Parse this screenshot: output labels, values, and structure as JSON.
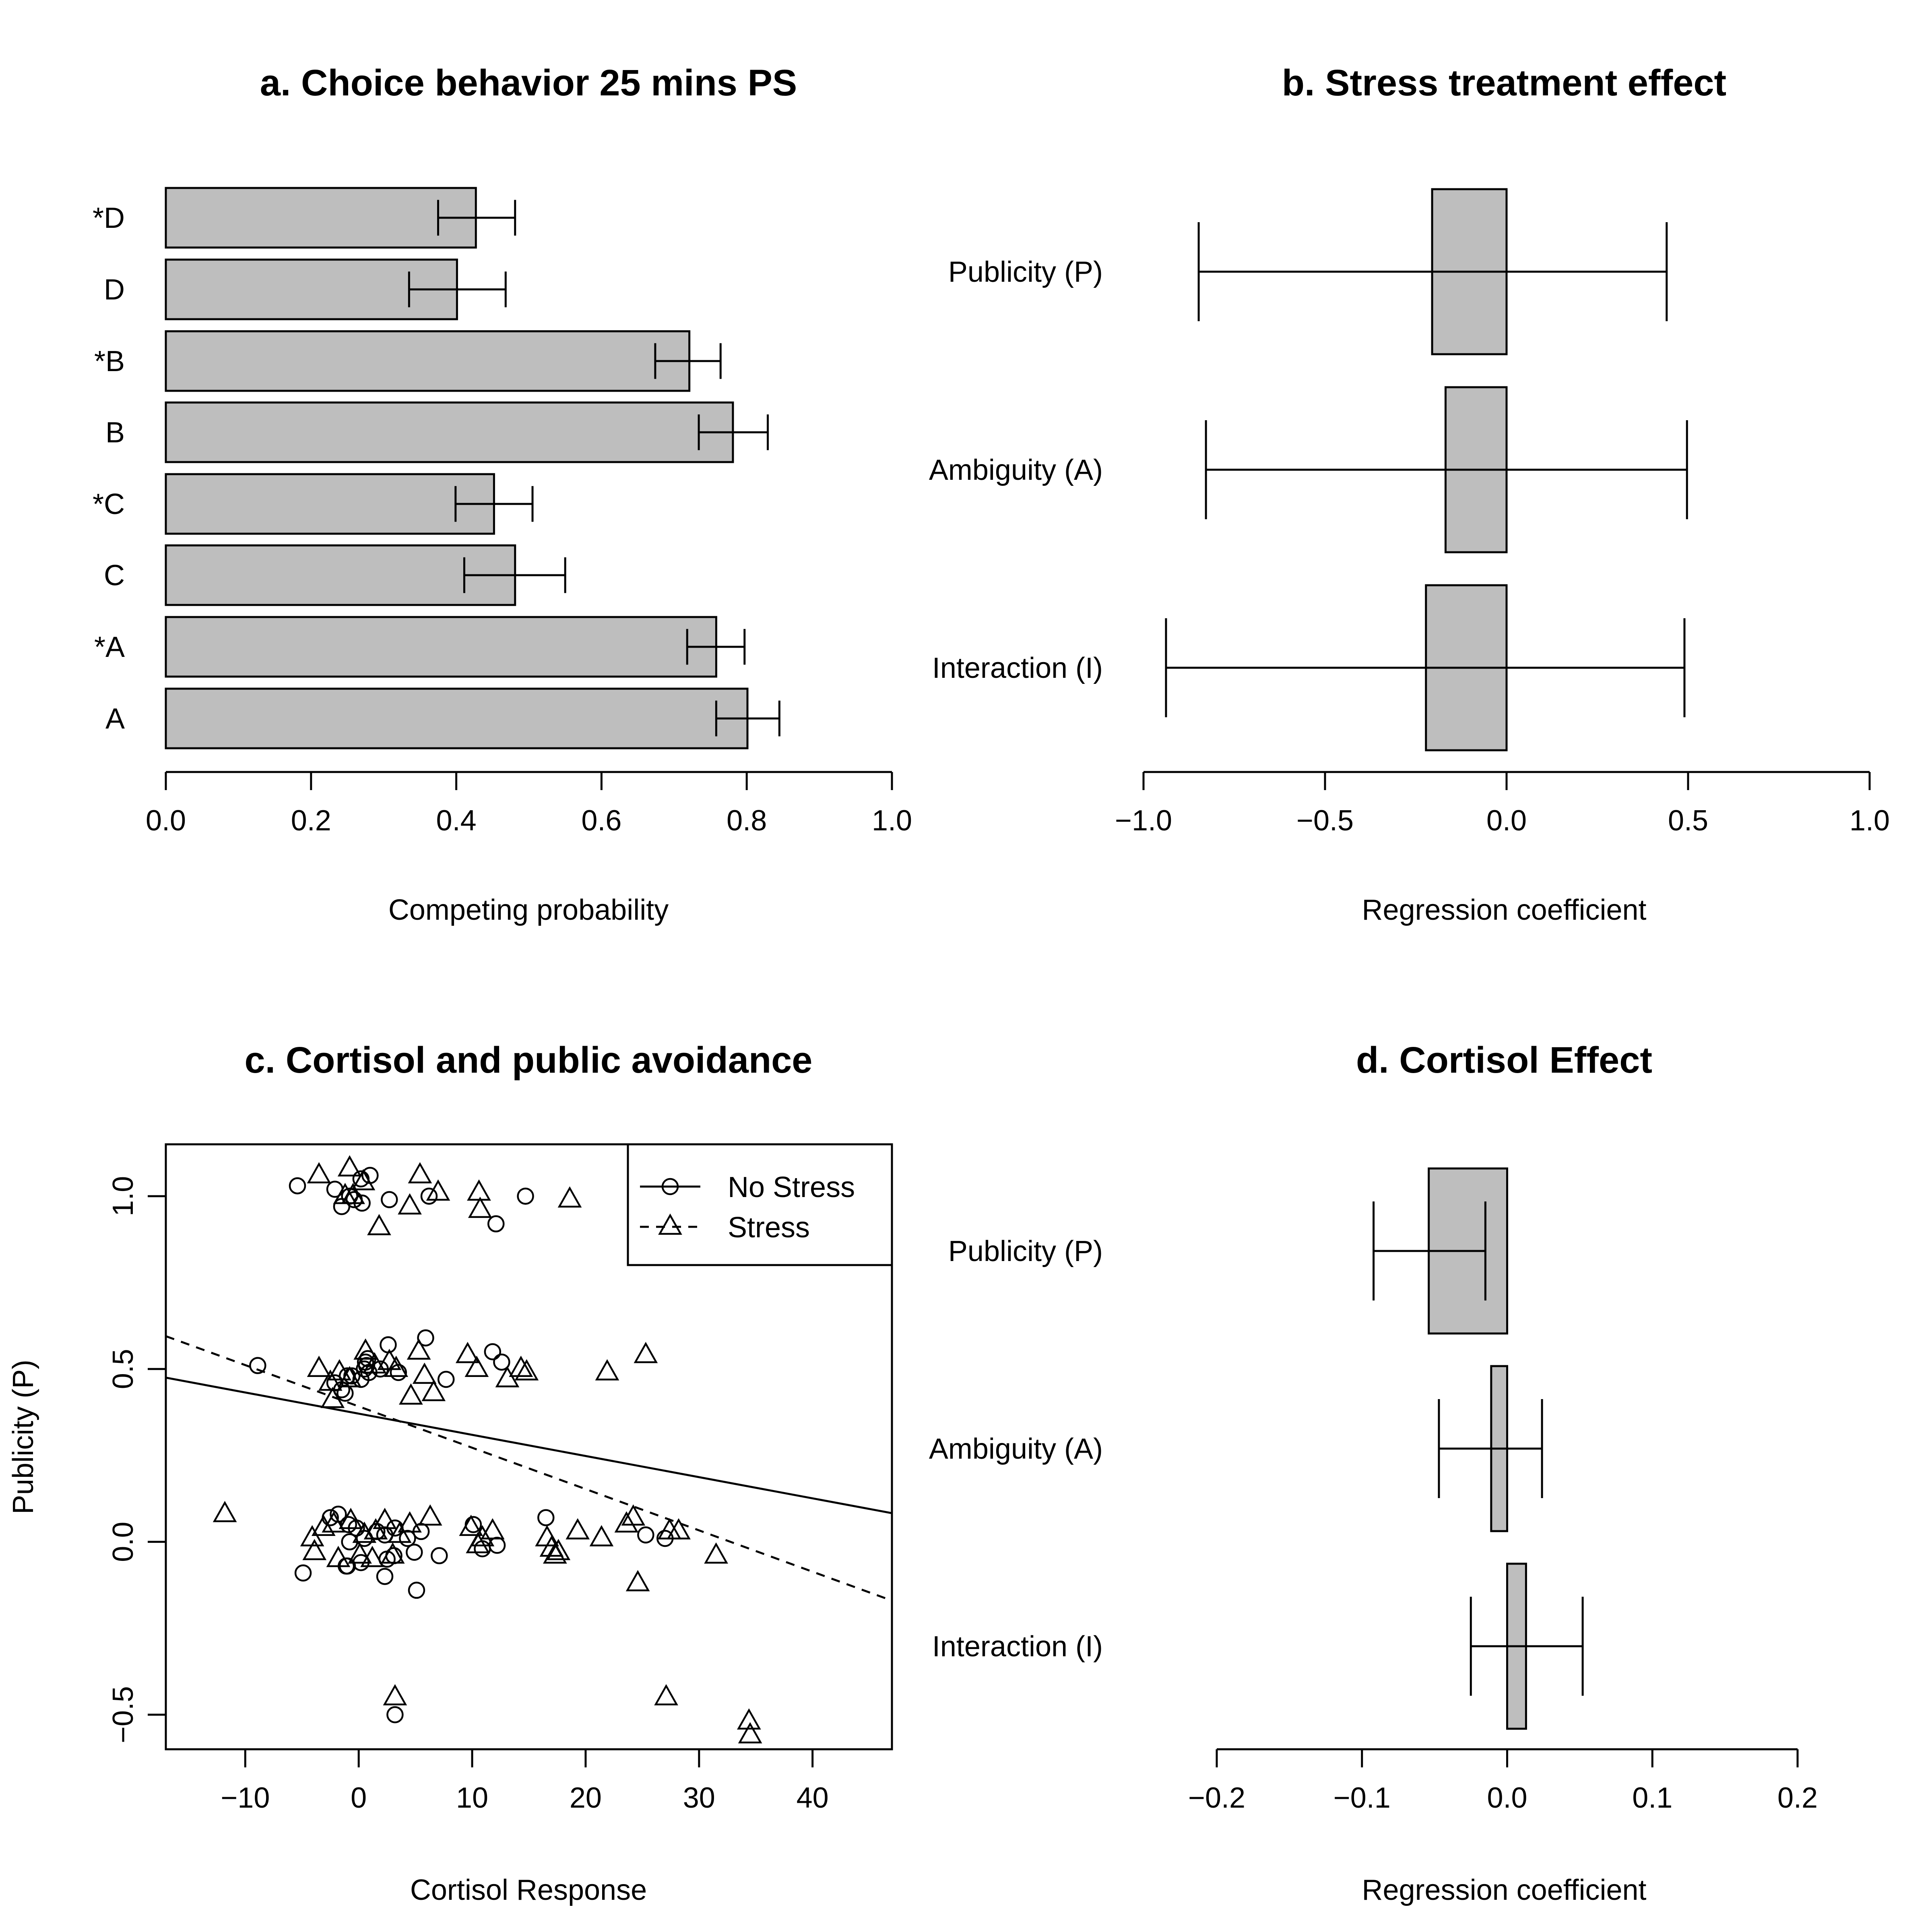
{
  "chart_data": [
    {
      "id": "a",
      "type": "bar",
      "orientation": "horizontal",
      "title": "a. Choice behavior 25 mins PS",
      "xlabel": "Competing probability",
      "xlim": [
        0,
        1
      ],
      "xticks": [
        "0.0",
        "0.2",
        "0.4",
        "0.6",
        "0.8",
        "1.0"
      ],
      "categories": [
        "*D",
        "D",
        "*B",
        "B",
        "*C",
        "C",
        "*A",
        "A"
      ],
      "values": [
        0.427,
        0.401,
        0.721,
        0.781,
        0.452,
        0.481,
        0.758,
        0.801
      ],
      "error_low": [
        0.375,
        0.335,
        0.674,
        0.734,
        0.399,
        0.411,
        0.718,
        0.758
      ],
      "error_high": [
        0.481,
        0.468,
        0.764,
        0.829,
        0.505,
        0.55,
        0.797,
        0.845
      ],
      "fill": "#bebebe"
    },
    {
      "id": "b",
      "type": "bar",
      "orientation": "horizontal",
      "title": "b. Stress treatment effect",
      "xlabel": "Regression coefficient",
      "xlim": [
        -1,
        1
      ],
      "xticks": [
        "−1.0",
        "−0.5",
        "0.0",
        "0.5",
        "1.0"
      ],
      "categories": [
        "Publicity (P)",
        "Ambiguity (A)",
        "Interaction (I)"
      ],
      "values": [
        -0.205,
        -0.168,
        -0.222
      ],
      "error_low": [
        -0.848,
        -0.828,
        -0.938
      ],
      "error_high": [
        0.441,
        0.497,
        0.49
      ],
      "fill": "#bebebe"
    },
    {
      "id": "c",
      "type": "scatter",
      "title": "c. Cortisol and public avoidance",
      "xlabel": "Cortisol Response",
      "ylabel": "Publicity (P)",
      "xlim": [
        -17,
        47
      ],
      "ylim": [
        -0.6,
        1.15
      ],
      "xticks": [
        "−10",
        "0",
        "10",
        "20",
        "30",
        "40"
      ],
      "yticks": [
        "−0.5",
        "0.0",
        "0.5",
        "1.0"
      ],
      "legend_position": "top-right",
      "series": [
        {
          "name": "No Stress",
          "marker": "circle",
          "line": "solid",
          "fit": [
            [
              -17,
              0.475
            ],
            [
              47,
              0.083
            ]
          ],
          "x": [
            -5.4,
            -2.1,
            -0.8,
            0.2,
            1.0,
            2.7,
            6.2,
            14.7,
            12.1,
            -1.5,
            -0.4,
            0.3,
            0.8,
            0.6,
            2.6,
            3.5,
            5.9,
            7.7,
            11.8,
            12.6,
            -0.6,
            0.7,
            1.9,
            0.5,
            -8.9,
            -1.0,
            -1.5,
            -2.1,
            -1.2,
            0.2,
            0.9,
            -2.5,
            -1.8,
            -0.9,
            -0.2,
            0.5,
            1.6,
            2.3,
            3.2,
            4.3,
            5.5,
            10.1,
            12.2,
            16.5,
            25.3,
            27.0,
            -0.8,
            -4.9,
            -1.0,
            0.2,
            2.5,
            3.1,
            4.9,
            7.1,
            10.9,
            -1.1,
            2.3,
            5.1,
            3.2
          ],
          "y": [
            1.03,
            1.02,
            1.0,
            1.05,
            1.06,
            0.99,
            1.0,
            1.0,
            0.92,
            0.97,
            0.99,
            0.98,
            0.53,
            0.52,
            0.57,
            0.49,
            0.59,
            0.47,
            0.55,
            0.52,
            0.48,
            0.51,
            0.5,
            0.5,
            0.51,
            0.48,
            0.44,
            0.46,
            0.43,
            0.47,
            0.49,
            0.07,
            0.08,
            0.05,
            0.04,
            0.01,
            0.03,
            0.02,
            0.04,
            0.01,
            0.03,
            0.05,
            -0.01,
            0.07,
            0.02,
            0.01,
            0.0,
            -0.09,
            -0.07,
            -0.06,
            -0.05,
            -0.04,
            -0.03,
            -0.04,
            -0.02,
            -0.07,
            -0.1,
            -0.14,
            -0.5
          ]
        },
        {
          "name": "Stress",
          "marker": "triangle",
          "line": "dashed",
          "fit": [
            [
              -17,
              0.595
            ],
            [
              47,
              -0.17
            ]
          ],
          "x": [
            -3.5,
            -0.8,
            -1.2,
            -0.5,
            0.4,
            1.8,
            4.5,
            5.4,
            7.0,
            10.6,
            10.7,
            18.6,
            -3.5,
            -2.5,
            -1.7,
            -0.8,
            0.6,
            1.4,
            2.7,
            3.3,
            5.3,
            5.8,
            9.6,
            10.4,
            13.1,
            14.3,
            14.8,
            21.9,
            25.3,
            -2.3,
            4.6,
            6.6,
            -11.8,
            -4.1,
            -3.1,
            -2.2,
            -0.7,
            0.5,
            1.5,
            2.3,
            3.6,
            4.5,
            6.3,
            9.9,
            10.9,
            11.8,
            16.6,
            19.3,
            21.4,
            23.6,
            24.2,
            27.4,
            28.2,
            -3.9,
            -1.8,
            0.1,
            1.2,
            3.0,
            10.5,
            17.0,
            17.3,
            17.6,
            31.5,
            24.6,
            3.2,
            27.1,
            34.4,
            34.5
          ],
          "y": [
            1.06,
            1.08,
            1.0,
            1.0,
            1.04,
            0.91,
            0.97,
            1.06,
            1.01,
            1.01,
            0.96,
            0.99,
            0.5,
            0.46,
            0.49,
            0.47,
            0.55,
            0.51,
            0.52,
            0.5,
            0.55,
            0.48,
            0.54,
            0.5,
            0.47,
            0.5,
            0.49,
            0.49,
            0.54,
            0.41,
            0.42,
            0.43,
            0.08,
            0.01,
            0.04,
            0.05,
            0.06,
            0.02,
            0.03,
            0.06,
            0.02,
            0.05,
            0.07,
            0.04,
            0.01,
            0.03,
            0.01,
            0.03,
            0.01,
            0.05,
            0.07,
            0.03,
            0.03,
            -0.03,
            -0.05,
            -0.04,
            -0.05,
            -0.04,
            -0.01,
            -0.02,
            -0.04,
            -0.03,
            -0.04,
            -0.12,
            -0.45,
            -0.45,
            -0.52,
            -0.56
          ]
        }
      ]
    },
    {
      "id": "d",
      "type": "bar",
      "orientation": "horizontal",
      "title": "d. Cortisol Effect",
      "xlabel": "Regression coefficient",
      "xlim": [
        -0.2,
        0.2
      ],
      "xticks": [
        "−0.2",
        "−0.1",
        "0.0",
        "0.1",
        "0.2"
      ],
      "categories": [
        "Publicity (P)",
        "Ambiguity (A)",
        "Interaction (I)"
      ],
      "values": [
        -0.054,
        -0.011,
        0.013
      ],
      "error_low": [
        -0.092,
        -0.047,
        -0.025
      ],
      "error_high": [
        -0.015,
        0.024,
        0.052
      ],
      "fill": "#bebebe"
    }
  ]
}
